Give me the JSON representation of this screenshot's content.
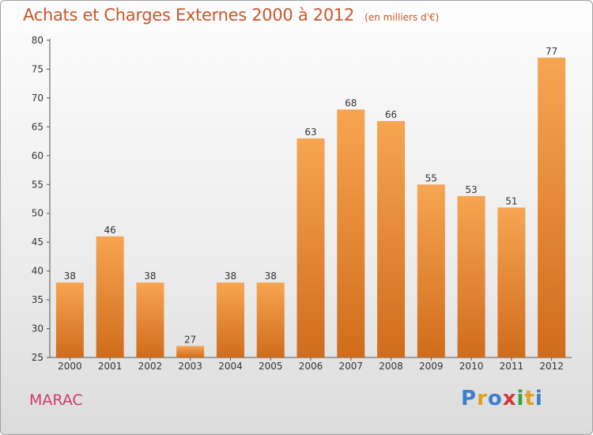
{
  "header": {
    "title": "Achats et Charges Externes 2000 à 2012",
    "unit": "(en milliers d'€)"
  },
  "footer": {
    "commune": "MARAC",
    "logo_text": "Proxiti",
    "logo_colors": [
      "#3a7fd0",
      "#e0a020",
      "#3a7fd0",
      "#d03a3a",
      "#3aa040",
      "#e0a020",
      "#3a7fd0"
    ]
  },
  "colors": {
    "bar_top": "#f7a552",
    "bar_bottom": "#d06c1c",
    "title": "#c8582a"
  },
  "chart_data": {
    "type": "bar",
    "title": "Achats et Charges Externes 2000 à 2012",
    "xlabel": "",
    "ylabel": "",
    "categories": [
      "2000",
      "2001",
      "2002",
      "2003",
      "2004",
      "2005",
      "2006",
      "2007",
      "2008",
      "2009",
      "2010",
      "2011",
      "2012"
    ],
    "values": [
      38,
      46,
      38,
      27,
      38,
      38,
      63,
      68,
      66,
      55,
      53,
      51,
      77
    ],
    "ylim": [
      25,
      80
    ],
    "yticks": [
      25,
      30,
      35,
      40,
      45,
      50,
      55,
      60,
      65,
      70,
      75,
      80
    ],
    "grid": false,
    "legend": "none"
  }
}
